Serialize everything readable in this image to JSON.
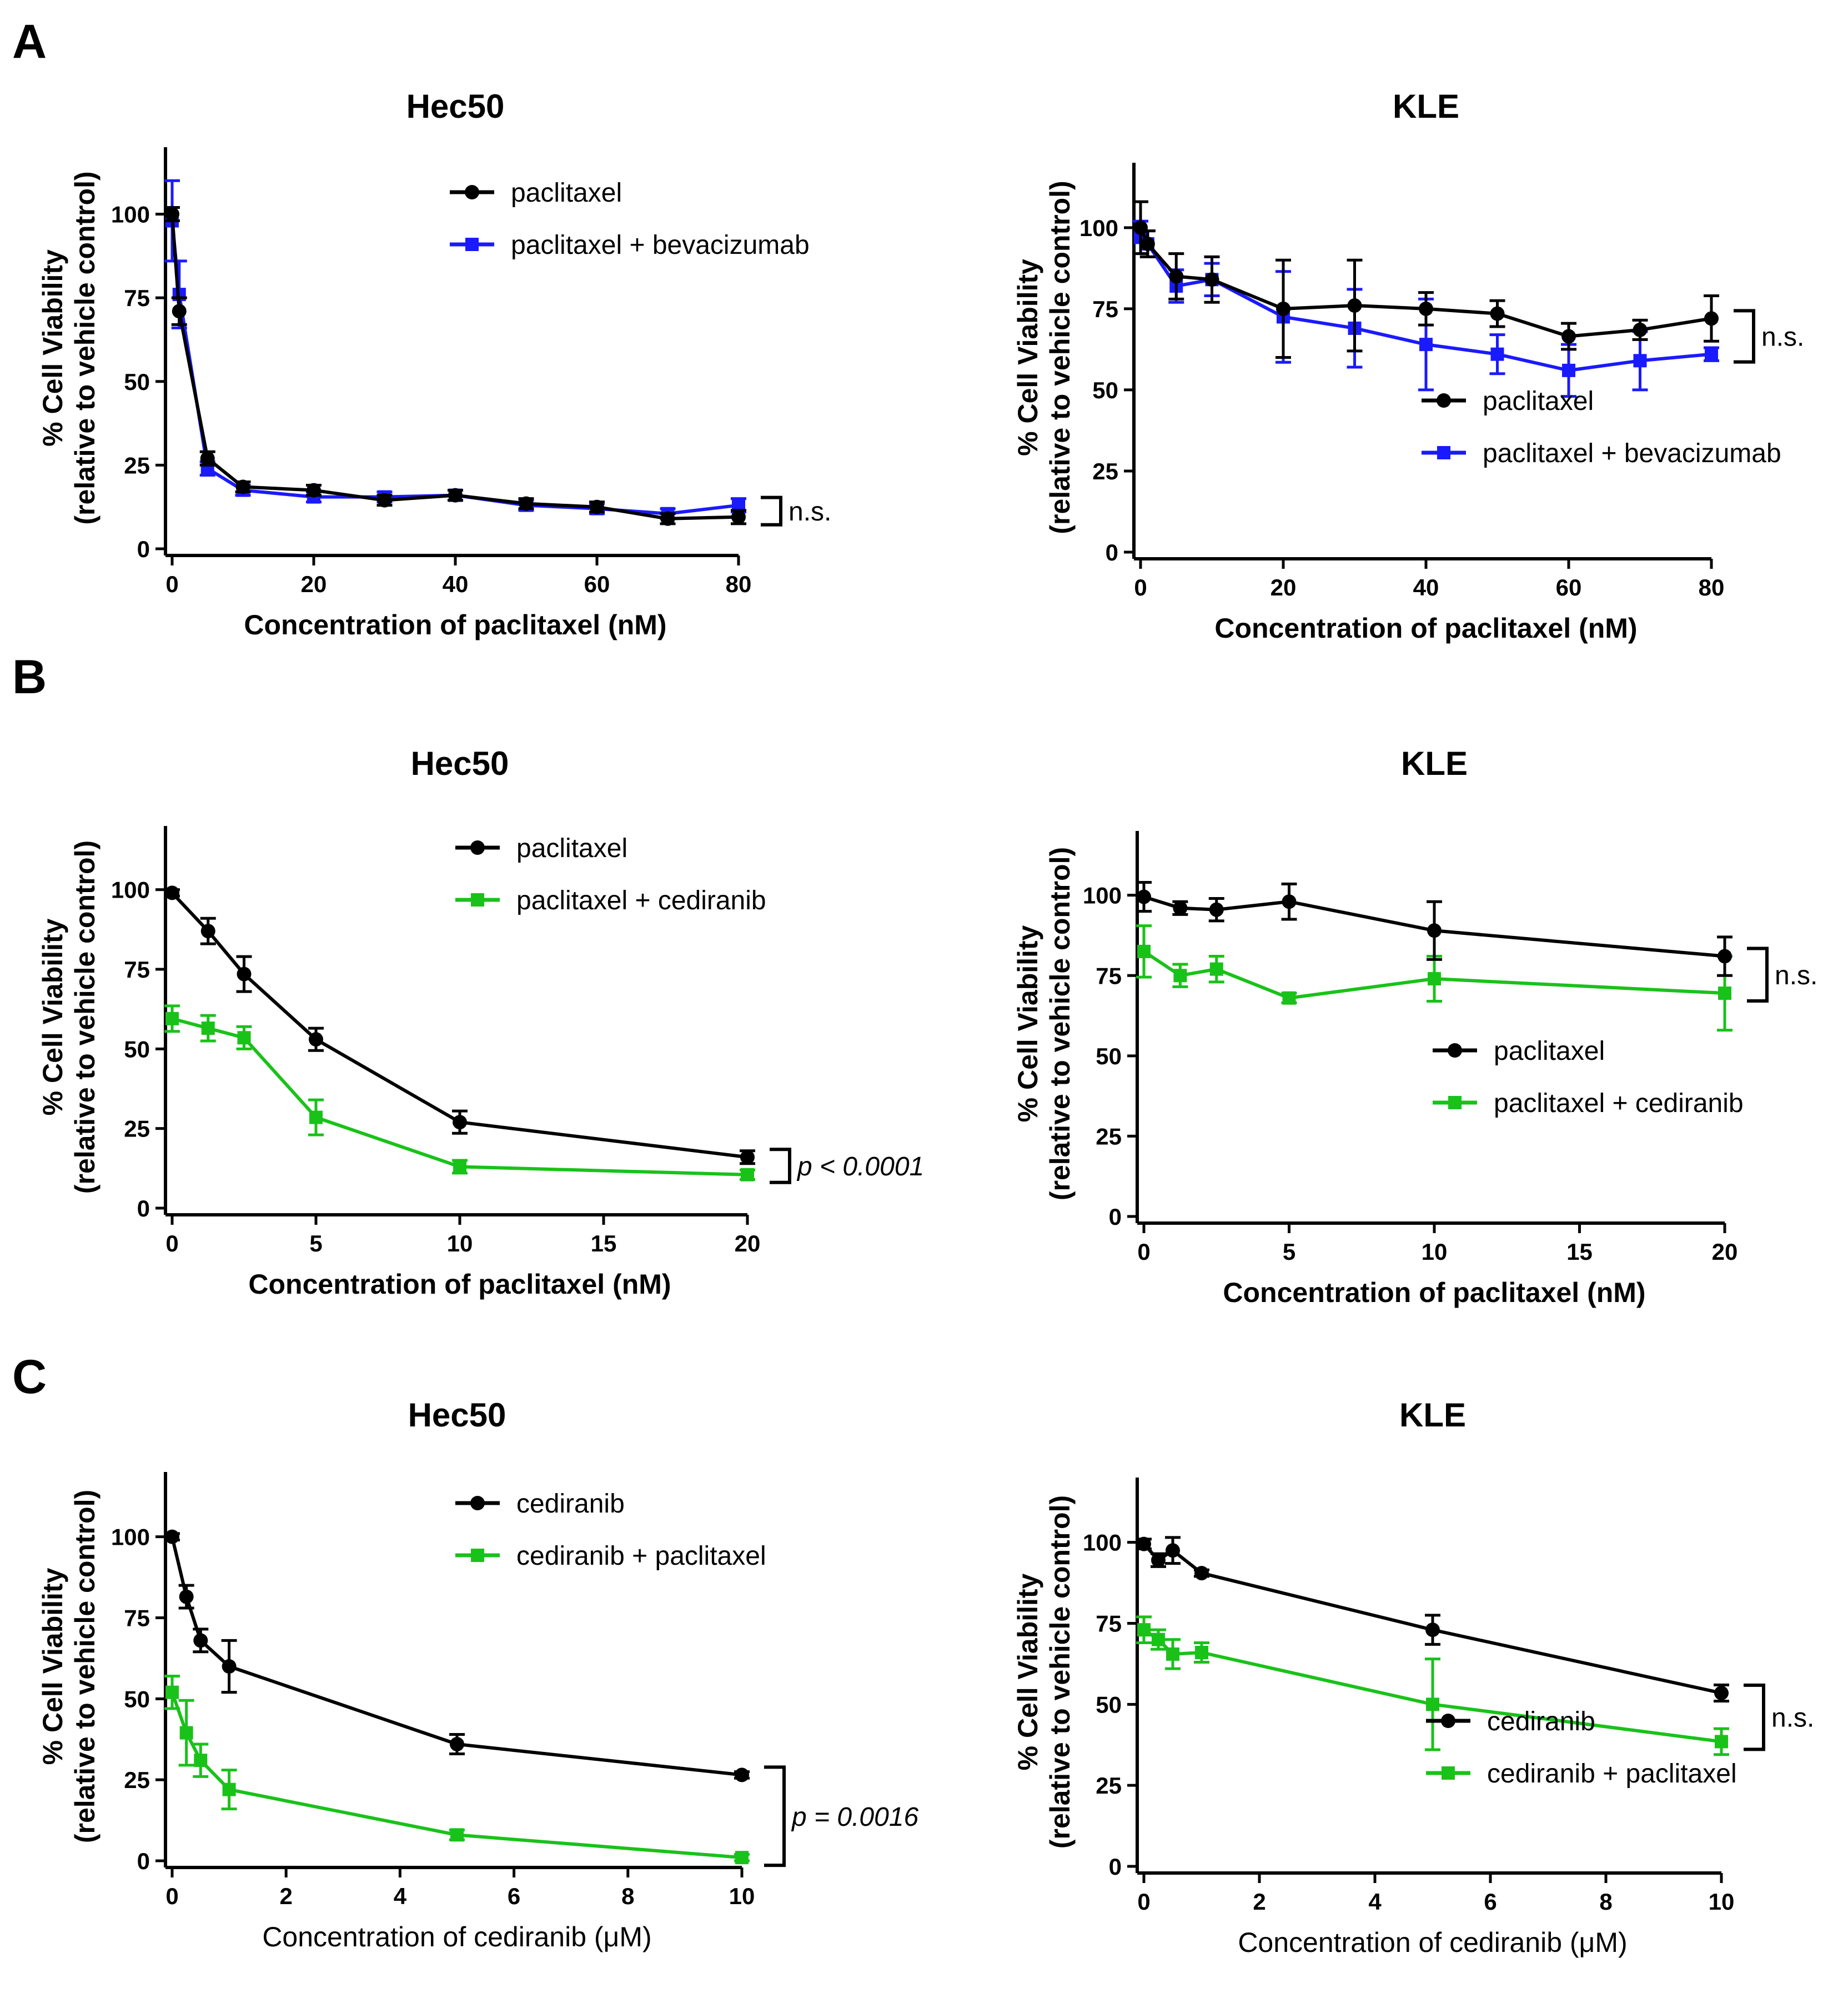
{
  "panels": [
    {
      "letter": "A"
    },
    {
      "letter": "B"
    },
    {
      "letter": "C"
    }
  ],
  "chart_data": [
    {
      "panel": "A",
      "type": "line",
      "title": "Hec50",
      "xlabel": "Concentration of paclitaxel (nM)",
      "ylabel": [
        "% Cell Viability",
        "(relative to vehicle control)"
      ],
      "xlim": [
        0,
        80
      ],
      "ylim": [
        0,
        120
      ],
      "xticks": [
        0,
        20,
        40,
        60,
        80
      ],
      "yticks": [
        0,
        25,
        50,
        75,
        100
      ],
      "legend_pos": "top-right",
      "series": [
        {
          "name": "paclitaxel",
          "color": "#000000",
          "marker": "circle",
          "x": [
            0,
            1,
            5,
            10,
            20,
            30,
            40,
            50,
            60,
            70,
            80
          ],
          "y": [
            100,
            71,
            27,
            18.5,
            17.5,
            14.5,
            16,
            13.5,
            12.5,
            9,
            9.5
          ],
          "err": [
            2,
            4,
            2,
            1.5,
            1.5,
            1.5,
            1.5,
            1.5,
            1.5,
            1.5,
            2
          ]
        },
        {
          "name": "paclitaxel + bevacizumab",
          "color": "#1a1aff",
          "marker": "square",
          "x": [
            0,
            1,
            5,
            10,
            20,
            30,
            40,
            50,
            60,
            70,
            80
          ],
          "y": [
            98,
            76,
            24,
            17.5,
            15.5,
            15.5,
            16,
            13,
            12,
            10.5,
            13
          ],
          "err": [
            12,
            10,
            2,
            1.5,
            1.5,
            1.5,
            1.5,
            1.5,
            1.5,
            1.5,
            2
          ]
        }
      ],
      "significance": {
        "text": "n.s.",
        "italic": false
      }
    },
    {
      "panel": "A",
      "type": "line",
      "title": "KLE",
      "xlabel": "Concentration of paclitaxel (nM)",
      "ylabel": [
        "% Cell Viability",
        "(relative to vehicle control)"
      ],
      "xlim": [
        0,
        80
      ],
      "ylim": [
        0,
        120
      ],
      "xticks": [
        0,
        20,
        40,
        60,
        80
      ],
      "yticks": [
        0,
        25,
        50,
        75,
        100
      ],
      "legend_pos": "bottom-right",
      "series": [
        {
          "name": "paclitaxel",
          "color": "#000000",
          "marker": "circle",
          "x": [
            0,
            1,
            5,
            10,
            20,
            30,
            40,
            50,
            60,
            70,
            80
          ],
          "y": [
            100,
            95,
            85,
            84,
            75,
            76,
            75,
            73.5,
            66.5,
            68.5,
            72
          ],
          "err": [
            8,
            4,
            7,
            7,
            15,
            14,
            5,
            4,
            4,
            3,
            7
          ]
        },
        {
          "name": "paclitaxel + bevacizumab",
          "color": "#1a1aff",
          "marker": "square",
          "x": [
            0,
            1,
            5,
            10,
            20,
            30,
            40,
            50,
            60,
            70,
            80
          ],
          "y": [
            97,
            95,
            82,
            84,
            72.5,
            69,
            64,
            61,
            56,
            59,
            61
          ],
          "err": [
            5,
            4,
            5,
            5,
            14,
            12,
            14,
            6,
            8,
            9,
            2
          ]
        }
      ],
      "significance": {
        "text": "n.s.",
        "italic": false
      }
    },
    {
      "panel": "B",
      "type": "line",
      "title": "Hec50",
      "xlabel": "Concentration of paclitaxel (nM)",
      "ylabel": [
        "% Cell Viability",
        "(relative to vehicle control)"
      ],
      "xlim": [
        0,
        20
      ],
      "ylim": [
        0,
        120
      ],
      "xticks": [
        0,
        5,
        10,
        15,
        20
      ],
      "yticks": [
        0,
        25,
        50,
        75,
        100
      ],
      "legend_pos": "top-right",
      "series": [
        {
          "name": "paclitaxel",
          "color": "#000000",
          "marker": "circle",
          "x": [
            0,
            1.25,
            2.5,
            5,
            10,
            20
          ],
          "y": [
            99,
            87,
            73.5,
            53,
            27,
            16
          ],
          "err": [
            1,
            4,
            5.5,
            3.5,
            3.5,
            2
          ]
        },
        {
          "name": "paclitaxel + cediranib",
          "color": "#19c219",
          "marker": "square",
          "x": [
            0,
            1.25,
            2.5,
            5,
            10,
            20
          ],
          "y": [
            59.5,
            56.5,
            53.5,
            28.5,
            13,
            10.5
          ],
          "err": [
            4,
            4,
            3.5,
            5.5,
            2,
            1.5
          ]
        }
      ],
      "significance": {
        "text": "p < 0.0001",
        "italic": true
      }
    },
    {
      "panel": "B",
      "type": "line",
      "title": "KLE",
      "xlabel": "Concentration of paclitaxel (nM)",
      "ylabel": [
        "% Cell Viability",
        "(relative to vehicle control)"
      ],
      "xlim": [
        0,
        20
      ],
      "ylim": [
        0,
        120
      ],
      "xticks": [
        0,
        5,
        10,
        15,
        20
      ],
      "yticks": [
        0,
        25,
        50,
        75,
        100
      ],
      "legend_pos": "bottom-right",
      "series": [
        {
          "name": "paclitaxel",
          "color": "#000000",
          "marker": "circle",
          "x": [
            0,
            1.25,
            2.5,
            5,
            10,
            20
          ],
          "y": [
            99.5,
            96,
            95.5,
            98,
            89,
            81
          ],
          "err": [
            4.5,
            2,
            3.5,
            5.5,
            9,
            6
          ]
        },
        {
          "name": "paclitaxel + cediranib",
          "color": "#19c219",
          "marker": "square",
          "x": [
            0,
            1.25,
            2.5,
            5,
            10,
            20
          ],
          "y": [
            82.5,
            75,
            77,
            68,
            74,
            69.5
          ],
          "err": [
            8,
            3.5,
            4,
            1.5,
            7,
            11.5
          ]
        }
      ],
      "significance": {
        "text": "n.s.",
        "italic": false
      }
    },
    {
      "panel": "C",
      "type": "line",
      "title": "Hec50",
      "xlabel": "Concentration of cediranib (μM)",
      "xlabel_bold": false,
      "ylabel": [
        "% Cell Viability",
        "(relative to vehicle control)"
      ],
      "xlim": [
        0,
        10
      ],
      "ylim": [
        0,
        120
      ],
      "xticks": [
        0,
        2,
        4,
        6,
        8,
        10
      ],
      "yticks": [
        0,
        25,
        50,
        75,
        100
      ],
      "legend_pos": "top-right",
      "series": [
        {
          "name": "cediranib",
          "color": "#000000",
          "marker": "circle",
          "x": [
            0,
            0.25,
            0.5,
            1,
            5,
            10
          ],
          "y": [
            100,
            81.5,
            68,
            60,
            36,
            26.5
          ],
          "err": [
            1,
            3.5,
            3.5,
            8,
            3,
            1
          ]
        },
        {
          "name": "cediranib + paclitaxel",
          "color": "#19c219",
          "marker": "square",
          "x": [
            0,
            0.25,
            0.5,
            1,
            5,
            10
          ],
          "y": [
            52,
            39.5,
            31,
            22,
            8,
            1
          ],
          "err": [
            5,
            10,
            5,
            6,
            1.5,
            1
          ]
        }
      ],
      "significance": {
        "text": "p = 0.0016",
        "italic": true
      }
    },
    {
      "panel": "C",
      "type": "line",
      "title": "KLE",
      "xlabel": "Concentration of cediranib (μM)",
      "xlabel_bold": false,
      "ylabel": [
        "% Cell Viability",
        "(relative to vehicle control)"
      ],
      "xlim": [
        0,
        10
      ],
      "ylim": [
        0,
        120
      ],
      "xticks": [
        0,
        2,
        4,
        6,
        8,
        10
      ],
      "yticks": [
        0,
        25,
        50,
        75,
        100
      ],
      "legend_pos": "bottom-right",
      "series": [
        {
          "name": "cediranib",
          "color": "#000000",
          "marker": "circle",
          "x": [
            0,
            0.25,
            0.5,
            1,
            5,
            10
          ],
          "y": [
            99.5,
            94.5,
            97.5,
            90.5,
            73,
            53.5
          ],
          "err": [
            1.5,
            2,
            4,
            1,
            4.5,
            2.5
          ]
        },
        {
          "name": "cediranib + paclitaxel",
          "color": "#19c219",
          "marker": "square",
          "x": [
            0,
            0.25,
            0.5,
            1,
            5,
            10
          ],
          "y": [
            73,
            70,
            65.5,
            66,
            50,
            38.5
          ],
          "err": [
            4,
            3,
            4.5,
            3,
            14,
            4
          ]
        }
      ],
      "significance": {
        "text": "n.s.",
        "italic": false
      }
    }
  ]
}
